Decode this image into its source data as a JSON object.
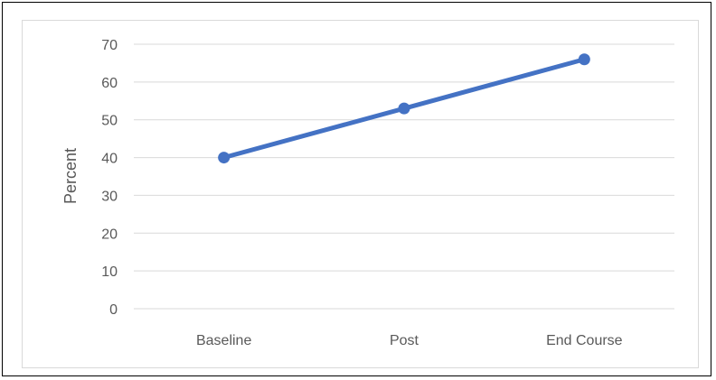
{
  "chart_data": {
    "type": "line",
    "categories": [
      "Baseline",
      "Post",
      "End Course"
    ],
    "series": [
      {
        "values": [
          40,
          53,
          66
        ]
      }
    ],
    "title": "",
    "xlabel": "",
    "ylabel": "Percent",
    "ylim": [
      0,
      70
    ],
    "yticks": [
      "0",
      "10",
      "20",
      "30",
      "40",
      "50",
      "60",
      "70"
    ],
    "grid": true,
    "legend": "none",
    "colors": {
      "line": "#4472c4",
      "grid": "#d9d9d9",
      "text": "#595959"
    }
  }
}
